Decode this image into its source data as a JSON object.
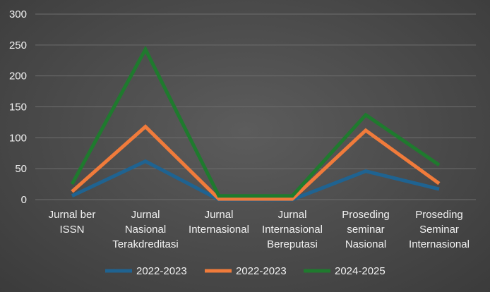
{
  "chart_data": {
    "type": "line",
    "categories": [
      [
        "Jurnal ber",
        "ISSN"
      ],
      [
        "Jurnal",
        "Nasional",
        "Terakdreditasi"
      ],
      [
        "Jurnal",
        "Internasional"
      ],
      [
        "Jurnal",
        "Internasional",
        "Bereputasi"
      ],
      [
        "Proseding",
        "seminar",
        "Nasional"
      ],
      [
        "Proseding",
        "Seminar",
        "Internasional"
      ]
    ],
    "series": [
      {
        "name": "2022-2023",
        "color": "#1f6391",
        "values": [
          6,
          62,
          0,
          0,
          46,
          17
        ]
      },
      {
        "name": "2022-2023",
        "color": "#f07b3b",
        "values": [
          13,
          118,
          1,
          1,
          112,
          26
        ]
      },
      {
        "name": "2024-2025",
        "color": "#1f7a2e",
        "values": [
          25,
          243,
          6,
          6,
          137,
          56
        ]
      }
    ],
    "ylim": [
      0,
      300
    ],
    "yticks": [
      0,
      50,
      100,
      150,
      200,
      250,
      300
    ],
    "grid": true,
    "legend_position": "bottom",
    "title": "",
    "xlabel": "",
    "ylabel": ""
  }
}
